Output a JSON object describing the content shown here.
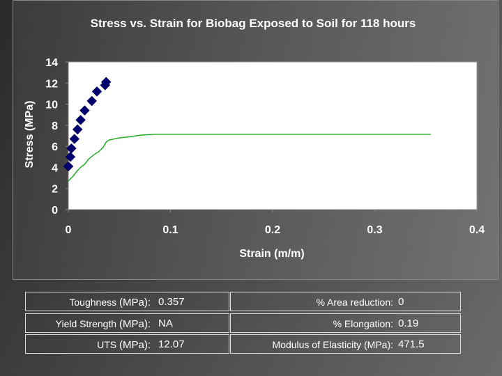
{
  "chart_data": {
    "type": "scatter",
    "title": "Stress vs. Strain for Biobag Exposed to Soil for 118 hours",
    "xlabel": "Strain (m/m)",
    "ylabel": "Stress (MPa)",
    "xlim": [
      0,
      0.4
    ],
    "ylim": [
      0,
      14
    ],
    "xticks": [
      "0",
      "0.1",
      "0.2",
      "0.3",
      "0.4"
    ],
    "yticks": [
      "0",
      "2",
      "4",
      "6",
      "8",
      "10",
      "12",
      "14"
    ],
    "grid": false,
    "series": [
      {
        "type": "scatter",
        "color": "#00006e",
        "marker": "diamond",
        "x": [
          0.0,
          0.002,
          0.003,
          0.006,
          0.009,
          0.012,
          0.016,
          0.023,
          0.028,
          0.036,
          0.037
        ],
        "y": [
          4.1,
          5.0,
          5.8,
          6.7,
          7.6,
          8.5,
          9.4,
          10.3,
          11.2,
          11.8,
          12.1
        ]
      },
      {
        "type": "line",
        "color": "#22aa22",
        "x": [
          0.0,
          0.005,
          0.008,
          0.012,
          0.016,
          0.02,
          0.025,
          0.03,
          0.034,
          0.037,
          0.04,
          0.05,
          0.06,
          0.07,
          0.085,
          0.15,
          0.25,
          0.355
        ],
        "y": [
          2.7,
          3.2,
          3.6,
          4.0,
          4.3,
          4.8,
          5.2,
          5.5,
          5.9,
          6.4,
          6.6,
          6.8,
          6.9,
          7.05,
          7.15,
          7.15,
          7.15,
          7.15
        ]
      }
    ]
  },
  "stats": {
    "toughness_label": "Toughness ",
    "toughness_unit": "(MPa):",
    "toughness_value": "0.357",
    "yield_label": "Yield Strength ",
    "yield_unit": "(MPa):",
    "yield_value": "NA",
    "uts_label": "UTS ",
    "uts_unit": "(MPa):",
    "uts_value": "12.07",
    "area_label": "% Area reduction:",
    "area_value": "0",
    "elong_label": "% Elongation:",
    "elong_value": "0.19",
    "modulus_label": "Modulus of Elasticity (MPa):",
    "modulus_value": "471.5"
  },
  "colors": {
    "plot_background": "#ffffff",
    "text": "#ffffff",
    "scatter_marker": "#00006e",
    "line": "#22aa22"
  }
}
